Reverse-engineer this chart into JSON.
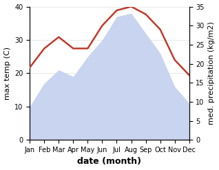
{
  "months": [
    "Jan",
    "Feb",
    "Mar",
    "Apr",
    "May",
    "Jun",
    "Jul",
    "Aug",
    "Sep",
    "Oct",
    "Nov",
    "Dec"
  ],
  "month_indices": [
    0,
    1,
    2,
    3,
    4,
    5,
    6,
    7,
    8,
    9,
    10,
    11
  ],
  "max_temp": [
    10,
    17,
    21,
    19,
    25,
    30,
    37,
    38,
    32,
    26,
    16,
    11
  ],
  "precipitation": [
    19,
    24,
    27,
    24,
    24,
    30,
    34,
    35,
    33,
    29,
    21,
    17
  ],
  "temp_ylim": [
    0,
    40
  ],
  "precip_ylim": [
    0,
    35
  ],
  "temp_ylabel": "max temp (C)",
  "precip_ylabel": "med. precipitation (kg/m2)",
  "xlabel": "date (month)",
  "temp_color": "#c0392b",
  "fill_color": "#c8d4f0",
  "bg_color": "#ffffff",
  "temp_linewidth": 1.8,
  "xlabel_fontsize": 9,
  "xlabel_fontweight": "bold",
  "ylabel_fontsize": 8,
  "tick_fontsize": 7,
  "temp_yticks": [
    0,
    10,
    20,
    30,
    40
  ],
  "precip_yticks": [
    0,
    5,
    10,
    15,
    20,
    25,
    30,
    35
  ]
}
